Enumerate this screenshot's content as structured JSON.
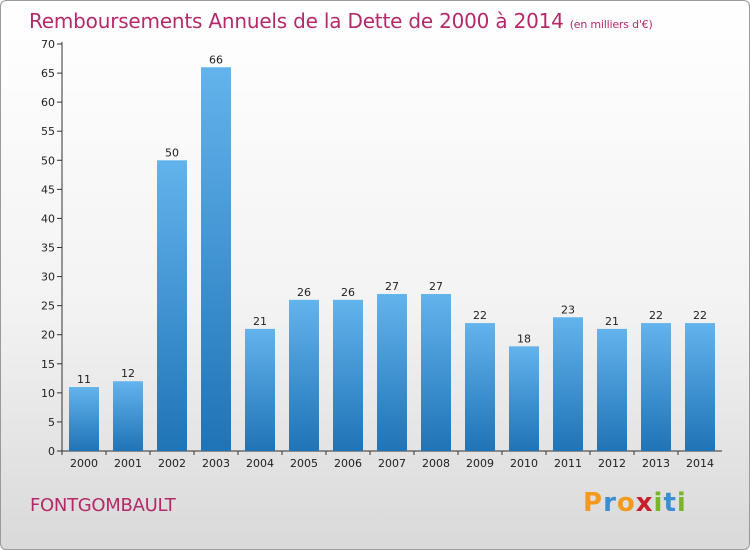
{
  "header": {
    "title": "Remboursements Annuels de la Dette de 2000 à 2014",
    "subtitle": "(en milliers d'€)"
  },
  "footer": {
    "commune": "FONTGOMBAULT",
    "logo_letters": [
      "P",
      "r",
      "o",
      "x",
      "i",
      "t",
      "i"
    ],
    "logo_colors": [
      "#f39a1d",
      "#3a8fd0",
      "#f39a1d",
      "#c8202b",
      "#7bb52c",
      "#3a8fd0",
      "#7bb52c"
    ]
  },
  "colors": {
    "title": "#b5296a",
    "bar_light": "#63b3ec",
    "bar_dark": "#1f74b7"
  },
  "chart_data": {
    "type": "bar",
    "title": "Remboursements Annuels de la Dette de 2000 à 2014",
    "xlabel": "",
    "ylabel": "",
    "categories": [
      "2000",
      "2001",
      "2002",
      "2003",
      "2004",
      "2005",
      "2006",
      "2007",
      "2008",
      "2009",
      "2010",
      "2011",
      "2012",
      "2013",
      "2014"
    ],
    "values": [
      11,
      12,
      50,
      66,
      21,
      26,
      26,
      27,
      27,
      22,
      18,
      23,
      21,
      22,
      22
    ],
    "ylim": [
      0,
      70
    ],
    "yticks": [
      0,
      5,
      10,
      15,
      20,
      25,
      30,
      35,
      40,
      45,
      50,
      55,
      60,
      65,
      70
    ],
    "grid": false,
    "data_labels": true
  }
}
